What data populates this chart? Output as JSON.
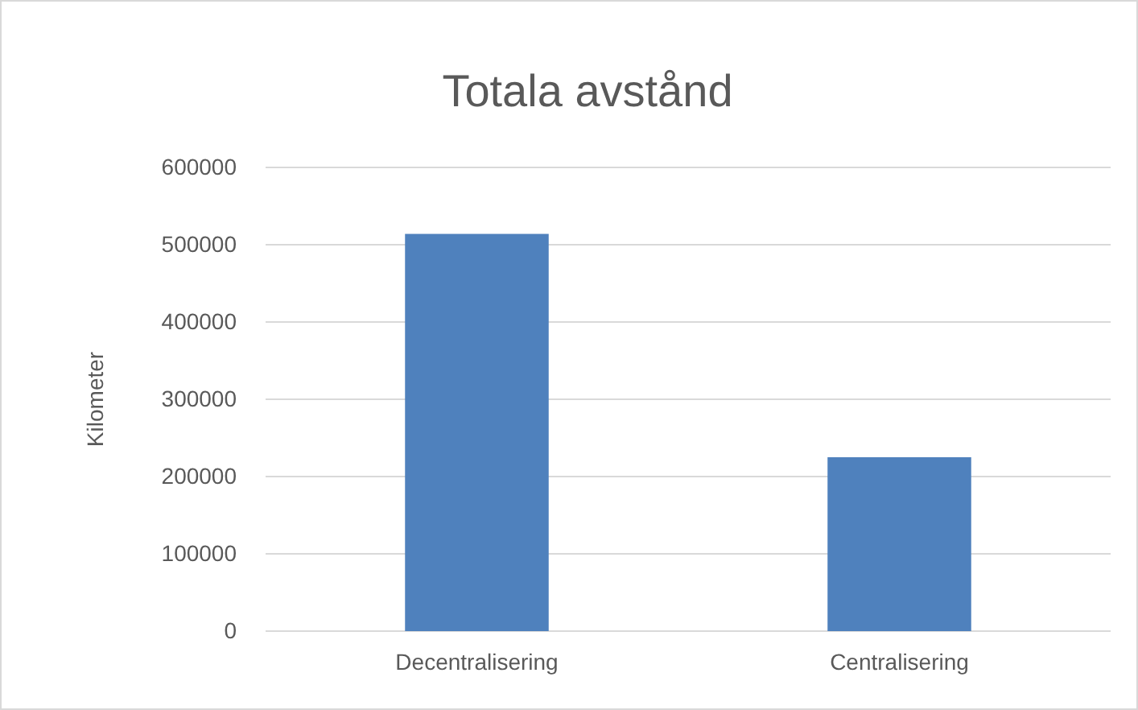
{
  "chart_data": {
    "type": "bar",
    "title": "Totala avstånd",
    "ylabel": "Kilometer",
    "categories": [
      "Decentralisering",
      "Centralisering"
    ],
    "values": [
      514000,
      225000
    ],
    "color": "#4f81bd",
    "ylim": [
      0,
      600000
    ],
    "yticks": [
      0,
      100000,
      200000,
      300000,
      400000,
      500000,
      600000
    ],
    "grid": "y"
  }
}
